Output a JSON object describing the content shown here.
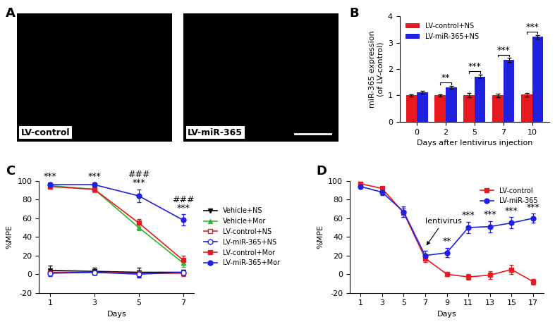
{
  "chart_data": [
    {
      "type": "image",
      "panel": "A",
      "images": [
        {
          "label": "LV-control"
        },
        {
          "label": "LV-miR-365"
        }
      ]
    },
    {
      "type": "bar",
      "panel": "B",
      "x_label": "Days after lentivirus injection",
      "y_label": "miR-365 expression\n(of LV-control)",
      "categories": [
        "0",
        "2",
        "5",
        "7",
        "10"
      ],
      "series": [
        {
          "name": "LV-control+NS",
          "color": "#e8191e",
          "values": [
            1.0,
            1.0,
            1.0,
            1.0,
            1.03
          ],
          "errors": [
            0.05,
            0.05,
            0.08,
            0.06,
            0.07
          ]
        },
        {
          "name": "LV-miR-365+NS",
          "color": "#2020e0",
          "values": [
            1.12,
            1.3,
            1.72,
            2.35,
            3.22
          ],
          "errors": [
            0.06,
            0.06,
            0.07,
            0.08,
            0.07
          ]
        }
      ],
      "annotations": [
        {
          "category": "2",
          "text": "**"
        },
        {
          "category": "5",
          "text": "***"
        },
        {
          "category": "7",
          "text": "***"
        },
        {
          "category": "10",
          "text": "***"
        }
      ],
      "ylim": [
        0,
        4
      ],
      "yticks": [
        0,
        1,
        2,
        3,
        4
      ],
      "legend": "upper left"
    },
    {
      "type": "line",
      "panel": "C",
      "x_label": "Days",
      "y_label": "%MPE",
      "x": [
        1,
        3,
        5,
        7
      ],
      "series": [
        {
          "name": "Vehicle+NS",
          "color": "#000000",
          "marker": "triangle_down",
          "values": [
            4,
            3,
            2,
            2
          ],
          "errors": [
            5,
            4,
            5,
            3
          ]
        },
        {
          "name": "Vehicle+Mor",
          "color": "#2db82d",
          "marker": "triangle_up",
          "values": [
            95,
            91,
            50,
            12
          ],
          "errors": [
            2,
            3,
            3,
            4
          ]
        },
        {
          "name": "LV-control+NS",
          "color": "#e8191e",
          "marker": "open_square",
          "values": [
            2,
            2,
            1,
            1
          ],
          "errors": [
            3,
            3,
            3,
            3
          ]
        },
        {
          "name": "LV-miR-365+NS",
          "color": "#2020e0",
          "marker": "open_circle",
          "values": [
            1,
            2,
            0,
            2
          ],
          "errors": [
            3,
            3,
            4,
            3
          ]
        },
        {
          "name": "LV-control+Mor",
          "color": "#e8191e",
          "marker": "square",
          "values": [
            94,
            91,
            55,
            15
          ],
          "errors": [
            2,
            2,
            4,
            5
          ]
        },
        {
          "name": "LV-miR-365+Mor",
          "color": "#2020e0",
          "marker": "circle",
          "values": [
            96,
            96,
            84,
            58
          ],
          "errors": [
            2,
            2,
            7,
            6
          ]
        }
      ],
      "annotations": [
        {
          "x": 1,
          "text": "***"
        },
        {
          "x": 3,
          "text": "***"
        },
        {
          "x": 5,
          "text": "***"
        },
        {
          "x": 7,
          "text": "***"
        },
        {
          "x": 5,
          "text": "###"
        },
        {
          "x": 7,
          "text": "###"
        }
      ],
      "xlim": [
        0.5,
        7.5
      ],
      "xticks": [
        1,
        3,
        5,
        7
      ],
      "ylim": [
        -20,
        100
      ],
      "yticks": [
        -20,
        0,
        20,
        40,
        60,
        80,
        100
      ],
      "legend": "center left"
    },
    {
      "type": "line",
      "panel": "D",
      "x_label": "Days",
      "y_label": "%MPE",
      "x": [
        1,
        3,
        5,
        7,
        9,
        11,
        13,
        15,
        17
      ],
      "series": [
        {
          "name": "LV-control",
          "color": "#e8191e",
          "marker": "square",
          "values": [
            97,
            92,
            66,
            17,
            0,
            -3,
            -1,
            5,
            -8
          ],
          "errors": [
            2,
            2,
            5,
            4,
            2,
            3,
            4,
            5,
            3
          ]
        },
        {
          "name": "LV-miR-365",
          "color": "#2020e0",
          "marker": "circle",
          "values": [
            94,
            88,
            67,
            20,
            23,
            50,
            51,
            55,
            60
          ],
          "errors": [
            2,
            3,
            6,
            5,
            5,
            6,
            6,
            6,
            5
          ]
        }
      ],
      "annotations": [
        {
          "x": 7,
          "text": "lentivirus",
          "arrow": true
        },
        {
          "x": 9,
          "text": "**"
        },
        {
          "x": 11,
          "text": "***"
        },
        {
          "x": 13,
          "text": "***"
        },
        {
          "x": 15,
          "text": "***"
        },
        {
          "x": 17,
          "text": "***"
        }
      ],
      "xlim": [
        0,
        18
      ],
      "xticks": [
        1,
        3,
        5,
        7,
        9,
        11,
        13,
        15,
        17
      ],
      "ylim": [
        -20,
        100
      ],
      "yticks": [
        -20,
        0,
        20,
        40,
        60,
        80,
        100
      ],
      "legend": "upper right"
    }
  ]
}
